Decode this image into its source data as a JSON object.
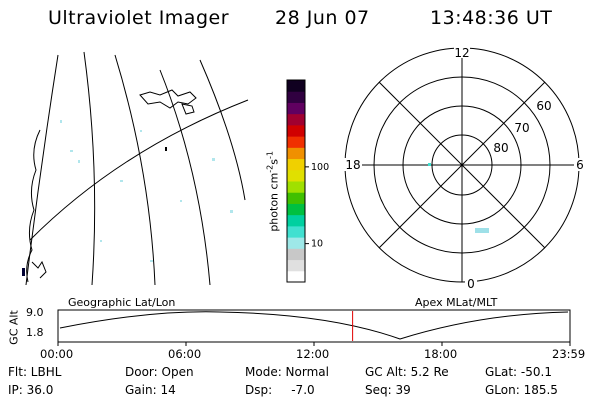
{
  "header": {
    "title": "Ultraviolet Imager",
    "date": "28 Jun 07",
    "time": "13:48:36 UT"
  },
  "colorbar": {
    "unit_label": "photon cm",
    "unit_exp1": "-2",
    "unit_mid": "s",
    "unit_exp2": "-1",
    "ticks": [
      {
        "label": "100",
        "level": 0.57
      },
      {
        "label": "10",
        "level": 0.19
      }
    ],
    "colors": [
      "#ffffff",
      "#e0e0e0",
      "#c8c8c8",
      "#9ee8e8",
      "#40e0d0",
      "#00d0a0",
      "#00c040",
      "#40c000",
      "#a0e000",
      "#e0e000",
      "#f0d000",
      "#f09000",
      "#f03000",
      "#d00000",
      "#a00030",
      "#600060",
      "#300040",
      "#100020"
    ]
  },
  "polar": {
    "mlt_labels": [
      "12",
      "18",
      "6",
      "0"
    ],
    "lat_labels": [
      "60",
      "70",
      "80"
    ]
  },
  "panels": {
    "left_label": "Geographic Lat/Lon",
    "right_label": "Apex  MLat/MLT"
  },
  "altitude_plot": {
    "ylabel": "GC Alt",
    "yticks": [
      "9.0",
      "1.8"
    ],
    "xticks": [
      "00:00",
      "06:00",
      "12:00",
      "18:00",
      "23:59"
    ],
    "current_hour": 13.81
  },
  "info": {
    "flt": "Flt: LBHL",
    "door": "Door: Open",
    "mode": "Mode: Normal",
    "gcalt": "GC Alt: 5.2 Re",
    "glat": "GLat: -50.1",
    "ip": "IP: 36.0",
    "gain": "Gain: 14",
    "dsp": "Dsp:     -7.0",
    "seq": "Seq: 39",
    "glon": "GLon: 185.5"
  }
}
